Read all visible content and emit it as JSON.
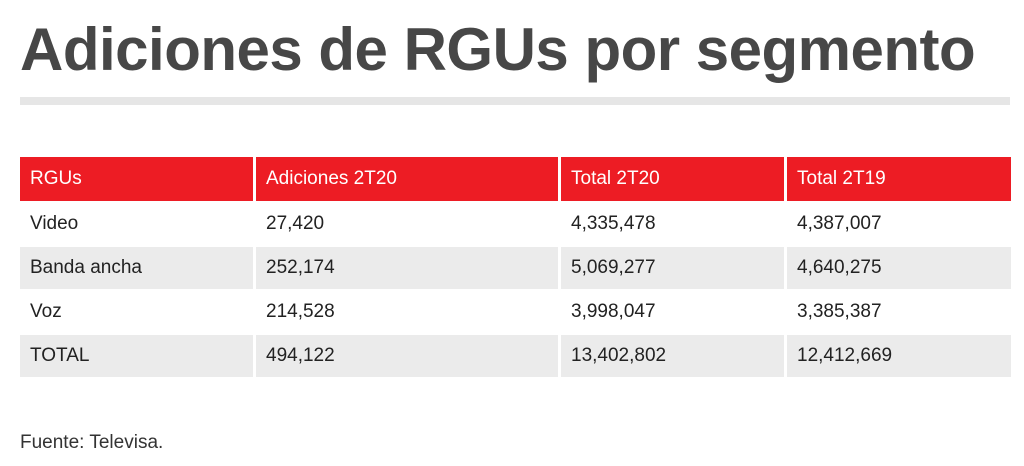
{
  "title": "Adiciones de RGUs por segmento",
  "table": {
    "headers": [
      "RGUs",
      "Adiciones 2T20",
      "Total 2T20",
      "Total 2T19"
    ],
    "rows": [
      [
        "Video",
        "27,420",
        "4,335,478",
        "4,387,007"
      ],
      [
        "Banda ancha",
        "252,174",
        "5,069,277",
        "4,640,275"
      ],
      [
        "Voz",
        "214,528",
        "3,998,047",
        "3,385,387"
      ],
      [
        "TOTAL",
        "494,122",
        "13,402,802",
        "12,412,669"
      ]
    ]
  },
  "source": "Fuente: Televisa.",
  "colors": {
    "header_bg": "#ed1c24",
    "header_text": "#ffffff",
    "title": "#474747",
    "row_alt_bg": "#ebebeb"
  }
}
